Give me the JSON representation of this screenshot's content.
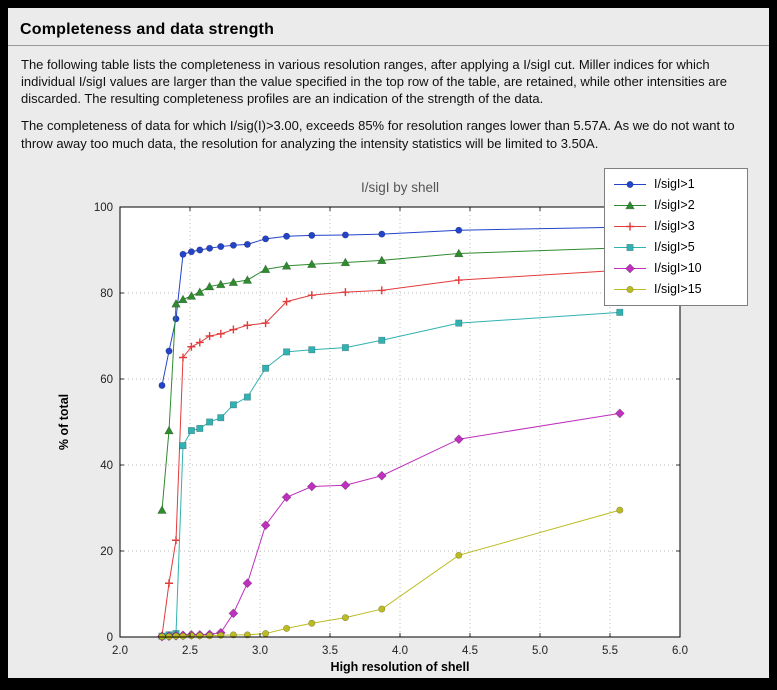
{
  "page": {
    "title": "Completeness and data strength",
    "paragraph1": "The following table lists the completeness in various resolution ranges, after applying a I/sigI cut. Miller indices for which individual I/sigI values are larger than the value specified in the top row of the table, are retained, while other intensities are discarded. The resulting completeness profiles are an indication of the strength of the data.",
    "paragraph2": "The completeness of data for which I/sig(I)>3.00, exceeds  85% for resolution ranges lower than 5.57A. As we do not want to throw away too much data, the resolution for analyzing the intensity statistics will be limited to 3.50A."
  },
  "chart_data": {
    "type": "line",
    "title": "I/sigI by shell",
    "xlabel": "High resolution of shell",
    "ylabel": "% of total",
    "xlim": [
      2.0,
      6.0
    ],
    "ylim": [
      0,
      100
    ],
    "grid": true,
    "legend_position": "upper right",
    "xticks": [
      2.0,
      2.5,
      3.0,
      3.5,
      4.0,
      4.5,
      5.0,
      5.5,
      6.0
    ],
    "yticks": [
      0,
      20,
      40,
      60,
      80,
      100
    ],
    "xtick_labels": [
      "2.0",
      "2.5",
      "3.0",
      "3.5",
      "4.0",
      "4.5",
      "5.0",
      "5.5",
      "6.0"
    ],
    "ytick_labels": [
      "0",
      "20",
      "40",
      "60",
      "80",
      "100"
    ],
    "x": [
      2.3,
      2.35,
      2.4,
      2.45,
      2.51,
      2.57,
      2.64,
      2.72,
      2.81,
      2.91,
      3.04,
      3.19,
      3.37,
      3.61,
      3.87,
      4.42,
      5.57
    ],
    "series": [
      {
        "name": "I/sigI>1",
        "color": "#2343c9",
        "marker": "circle",
        "values": [
          58.5,
          66.5,
          74.0,
          89.0,
          89.6,
          90.0,
          90.4,
          90.8,
          91.1,
          91.3,
          92.6,
          93.2,
          93.4,
          93.5,
          93.7,
          94.6,
          95.3
        ]
      },
      {
        "name": "I/sigI>2",
        "color": "#2f8b2f",
        "marker": "triangle",
        "values": [
          29.5,
          48.0,
          77.5,
          78.5,
          79.3,
          80.2,
          81.5,
          82.0,
          82.5,
          83.0,
          85.5,
          86.3,
          86.7,
          87.1,
          87.6,
          89.2,
          90.5
        ]
      },
      {
        "name": "I/sigI>3",
        "color": "#e23b3b",
        "marker": "plus",
        "values": [
          0.3,
          12.5,
          22.5,
          65.0,
          67.5,
          68.5,
          70.0,
          70.5,
          71.5,
          72.5,
          73.0,
          78.0,
          79.5,
          80.2,
          80.6,
          83.0,
          85.3
        ]
      },
      {
        "name": "I/sigI>5",
        "color": "#31b2b2",
        "marker": "square",
        "values": [
          0.2,
          0.5,
          0.8,
          44.5,
          48.0,
          48.5,
          50.0,
          51.0,
          54.0,
          55.8,
          62.5,
          66.3,
          66.8,
          67.3,
          69.0,
          73.0,
          75.5
        ]
      },
      {
        "name": "I/sigI>10",
        "color": "#bf30bf",
        "marker": "diamond",
        "values": [
          0.1,
          0.2,
          0.3,
          0.4,
          0.5,
          0.5,
          0.6,
          1.0,
          5.5,
          12.5,
          26.0,
          32.5,
          35.0,
          35.3,
          37.5,
          46.0,
          52.0
        ]
      },
      {
        "name": "I/sigI>15",
        "color": "#bcbc22",
        "marker": "circle",
        "values": [
          0.1,
          0.1,
          0.2,
          0.2,
          0.3,
          0.3,
          0.3,
          0.4,
          0.5,
          0.5,
          0.8,
          2.0,
          3.2,
          4.5,
          6.5,
          19.0,
          29.5
        ]
      }
    ]
  }
}
